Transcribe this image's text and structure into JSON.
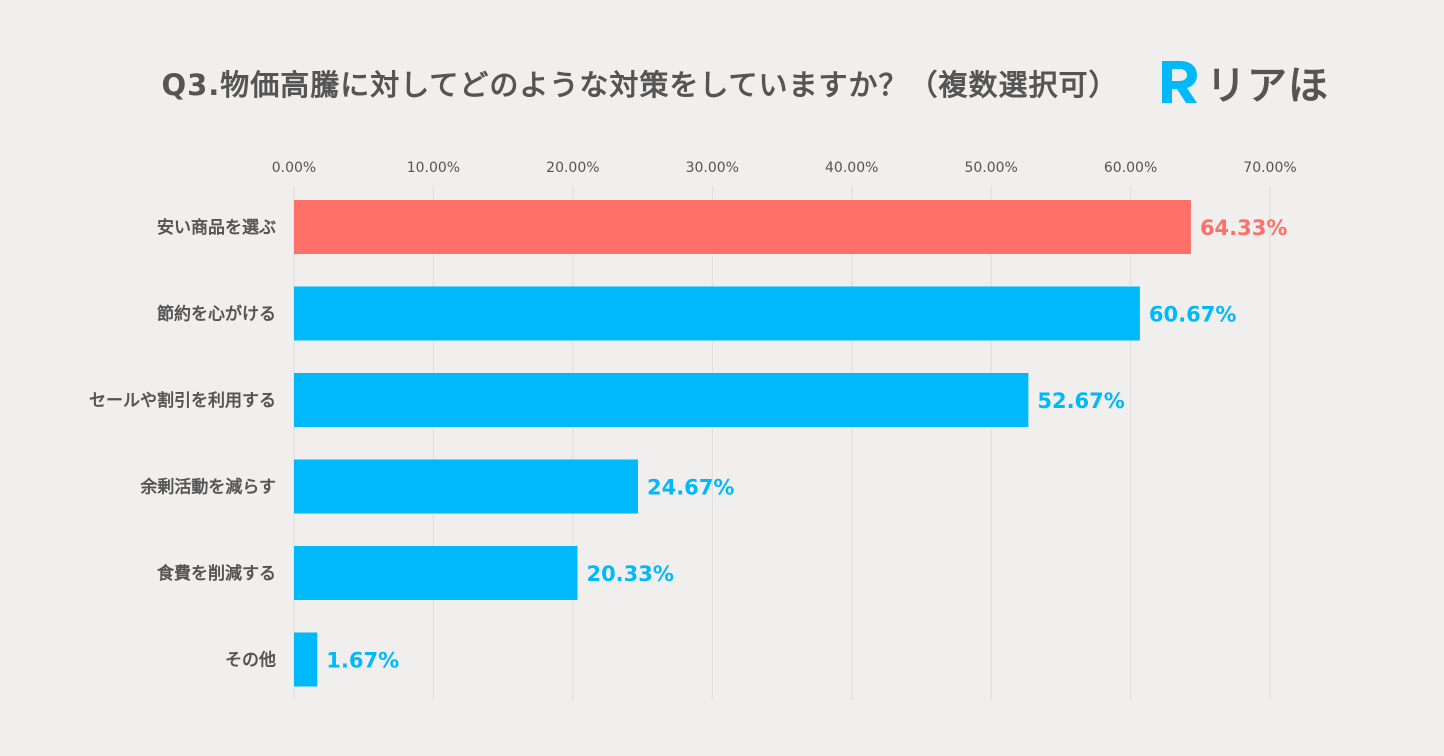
{
  "title": "Q3.物価高騰に対してどのような対策をしていますか？（複数選択可）",
  "logo": {
    "mark": "R",
    "text": "リアほ"
  },
  "colors": {
    "highlight": "#ff7168",
    "bar": "#00b9fb",
    "text": "#555555",
    "grid": "#dcdcdc",
    "background": "#f0efee"
  },
  "chart_data": {
    "type": "bar",
    "orientation": "horizontal",
    "title": "Q3.物価高騰に対してどのような対策をしていますか？（複数選択可）",
    "categories": [
      "安い商品を選ぶ",
      "節約を心がける",
      "セールや割引を利用する",
      "余剰活動を減らす",
      "食費を削減する",
      "その他"
    ],
    "values": [
      64.33,
      60.67,
      52.67,
      24.67,
      20.33,
      1.67
    ],
    "value_labels": [
      "64.33%",
      "60.67%",
      "52.67%",
      "24.67%",
      "20.33%",
      "1.67%"
    ],
    "highlight_index": 0,
    "xlim": [
      0,
      70
    ],
    "xticks": [
      0,
      10,
      20,
      30,
      40,
      50,
      60,
      70
    ],
    "xtick_labels": [
      "0.00%",
      "10.00%",
      "20.00%",
      "30.00%",
      "40.00%",
      "50.00%",
      "60.00%",
      "70.00%"
    ],
    "axis_position": "top",
    "grid": true,
    "legend": "none"
  }
}
